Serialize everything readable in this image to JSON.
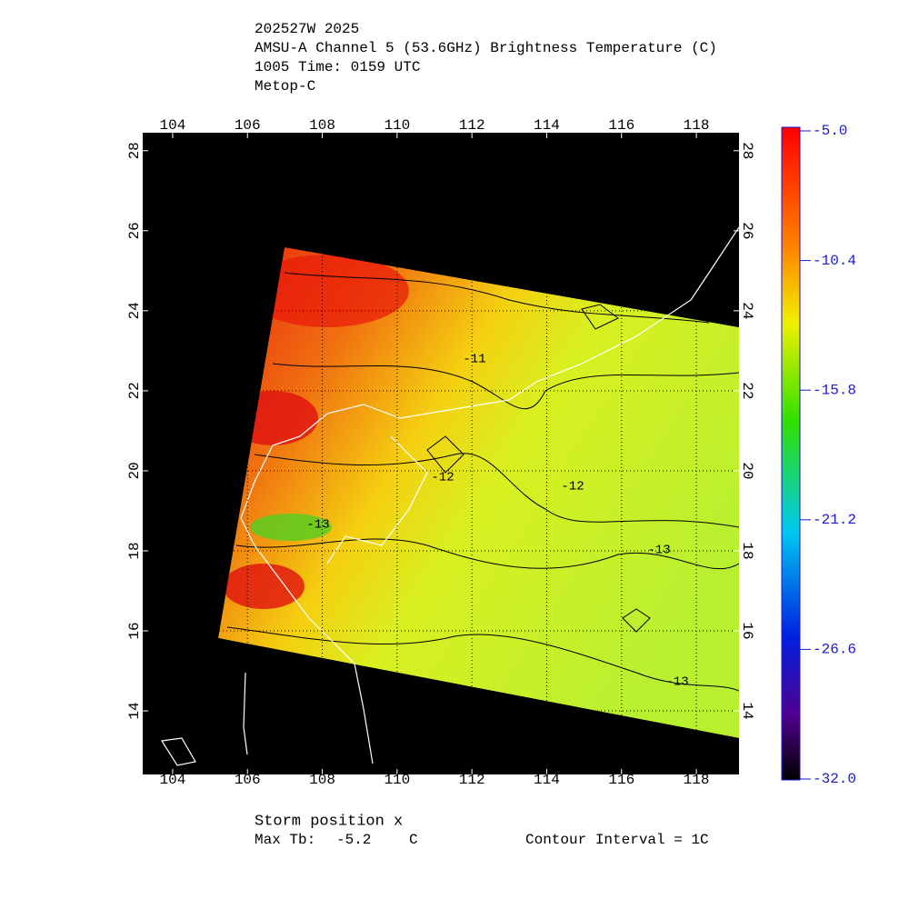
{
  "header": {
    "lines": [
      "202527W 2025",
      "AMSU-A Channel 5 (53.6GHz) Brightness Temperature (C)",
      "1005 Time: 0159 UTC",
      "Metop-C"
    ]
  },
  "chart_data": {
    "type": "map",
    "xlim": [
      103.2,
      119.14
    ],
    "ylim": [
      12.41,
      28.45
    ],
    "xticks": [
      104,
      106,
      108,
      110,
      112,
      114,
      116,
      118
    ],
    "yticks": [
      14,
      16,
      18,
      20,
      22,
      24,
      26,
      28
    ],
    "grid": true,
    "colorbar": {
      "clim": [
        -32,
        -5
      ],
      "ticks": [
        {
          "value": -5,
          "label": "-5.0"
        },
        {
          "value": -10.4,
          "label": "-10.4"
        },
        {
          "value": -15.8,
          "label": "-15.8"
        },
        {
          "value": -21.2,
          "label": "-21.2"
        },
        {
          "value": -26.6,
          "label": "-26.6"
        },
        {
          "value": -32,
          "label": "-32.0"
        }
      ]
    },
    "contour_labels": [
      "-11",
      "-12",
      "-12",
      "-13",
      "-13",
      "-13"
    ]
  },
  "footer": {
    "storm": "Storm position x",
    "max_tb": {
      "label": "Max Tb:",
      "value": -5.2,
      "unit": "C"
    },
    "contour_interval": "Contour Interval = 1C"
  }
}
